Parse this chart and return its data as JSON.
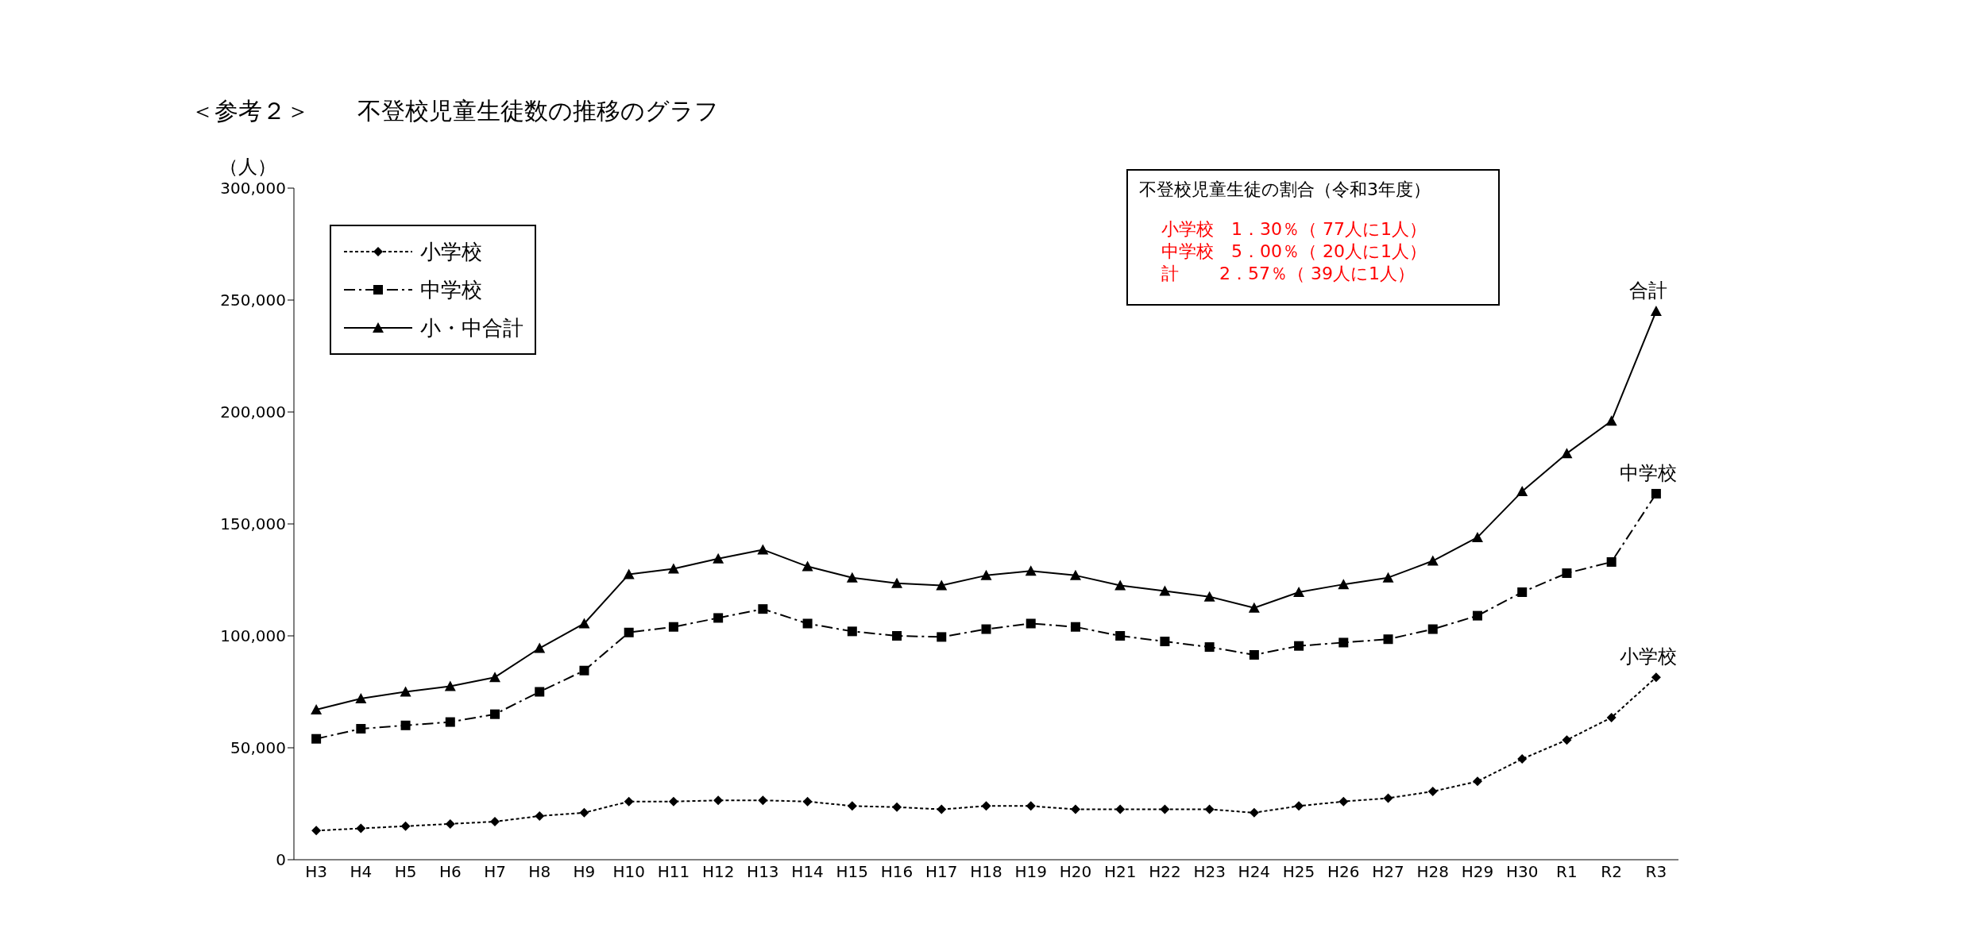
{
  "chart_data": {
    "type": "line",
    "title": "＜参考２＞　　不登校児童生徒数の推移のグラフ",
    "ylabel": "（人）",
    "categories": [
      "H3",
      "H4",
      "H5",
      "H6",
      "H7",
      "H8",
      "H9",
      "H10",
      "H11",
      "H12",
      "H13",
      "H14",
      "H15",
      "H16",
      "H17",
      "H18",
      "H19",
      "H20",
      "H21",
      "H22",
      "H23",
      "H24",
      "H25",
      "H26",
      "H27",
      "H28",
      "H29",
      "H30",
      "R1",
      "R2",
      "R3"
    ],
    "series": [
      {
        "name": "小学校",
        "color": "#000000",
        "marker": "diamond",
        "line_style": "dotted",
        "values": [
          13000,
          14000,
          15000,
          16000,
          17000,
          19500,
          21000,
          26000,
          26000,
          26500,
          26500,
          26000,
          24000,
          23500,
          22500,
          24000,
          24000,
          22500,
          22500,
          22500,
          22500,
          21000,
          24000,
          26000,
          27500,
          30500,
          35000,
          45000,
          53500,
          63500,
          81500
        ]
      },
      {
        "name": "中学校",
        "color": "#000000",
        "marker": "square",
        "line_style": "dashed",
        "values": [
          54000,
          58500,
          60000,
          61500,
          65000,
          75000,
          84500,
          101500,
          104000,
          108000,
          112000,
          105500,
          102000,
          100000,
          99500,
          103000,
          105500,
          104000,
          100000,
          97500,
          95000,
          91500,
          95500,
          97000,
          98500,
          103000,
          109000,
          119500,
          128000,
          133000,
          163500
        ]
      },
      {
        "name": "小・中合計",
        "color": "#000000",
        "marker": "triangle",
        "line_style": "solid",
        "values": [
          67000,
          72000,
          75000,
          77500,
          81500,
          94500,
          105500,
          127500,
          130000,
          134500,
          138500,
          131000,
          126000,
          123500,
          122500,
          127000,
          129000,
          127000,
          122500,
          120000,
          117500,
          112500,
          119500,
          123000,
          126000,
          133500,
          144000,
          164500,
          181500,
          196000,
          245000
        ]
      }
    ],
    "ylim": [
      0,
      300000
    ],
    "yticks": [
      {
        "value": 0,
        "label": "0"
      },
      {
        "value": 50000,
        "label": "50,000"
      },
      {
        "value": 100000,
        "label": "100,000"
      },
      {
        "value": 150000,
        "label": "150,000"
      },
      {
        "value": 200000,
        "label": "200,000"
      },
      {
        "value": 250000,
        "label": "250,000"
      },
      {
        "value": 300000,
        "label": "300,000"
      }
    ],
    "grid": false,
    "legend": "top left",
    "annotations": [
      "不登校児童生徒の割合（令和3年度）",
      "小学校　1．30％（ 77人に1人）",
      "中学校　5．00％（ 20人に1人）",
      "計　　 2．57％（ 39人に1人）",
      {
        "text": "合計",
        "x": "R3",
        "y": 245000
      },
      {
        "text": "中学校",
        "x": "R3",
        "y": 163500
      },
      {
        "text": "小学校",
        "x": "R3",
        "y": 81500
      }
    ]
  }
}
